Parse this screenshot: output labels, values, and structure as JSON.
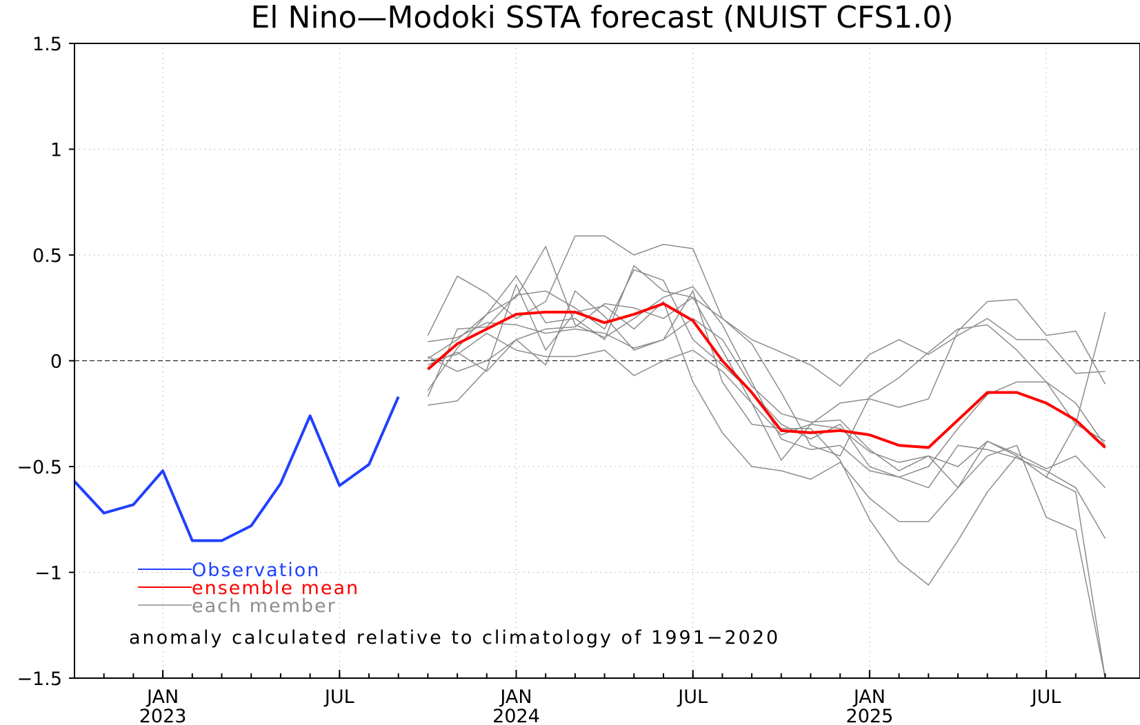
{
  "chart_data": {
    "type": "line",
    "title": "El Nino—Modoki SSTA forecast (NUIST CFS1.0)",
    "ylim": [
      -1.5,
      1.5
    ],
    "yticks": [
      {
        "value": 1.5,
        "label": "1.5"
      },
      {
        "value": 1,
        "label": "1"
      },
      {
        "value": 0.5,
        "label": "0.5"
      },
      {
        "value": 0,
        "label": "0"
      },
      {
        "value": -0.5,
        "label": "−0.5"
      },
      {
        "value": -1,
        "label": "−1"
      },
      {
        "value": -1.5,
        "label": "−1.5"
      }
    ],
    "x_range": [
      "2022-10",
      "2025-09"
    ],
    "xticks": [
      {
        "date": "2023-01",
        "month": "JAN",
        "year": "2023"
      },
      {
        "date": "2023-07",
        "month": "JUL",
        "year": ""
      },
      {
        "date": "2024-01",
        "month": "JAN",
        "year": "2024"
      },
      {
        "date": "2024-07",
        "month": "JUL",
        "year": ""
      },
      {
        "date": "2025-01",
        "month": "JAN",
        "year": "2025"
      },
      {
        "date": "2025-07",
        "month": "JUL",
        "year": ""
      }
    ],
    "grid": true,
    "legend_position": "bottom-left",
    "annotation": "anomaly calculated relative to climatology of 1991−2020",
    "colors": {
      "observation": "#2040ff",
      "ensemble_mean": "#ff0000",
      "member": "#8c8c8c"
    },
    "series": [
      {
        "name": "Observation",
        "role": "observation",
        "x": [
          "2022-10",
          "2022-11",
          "2022-12",
          "2023-01",
          "2023-02",
          "2023-03",
          "2023-04",
          "2023-05",
          "2023-06",
          "2023-07",
          "2023-08",
          "2023-09"
        ],
        "values": [
          -0.57,
          -0.72,
          -0.68,
          -0.52,
          -0.85,
          -0.85,
          -0.78,
          -0.58,
          -0.26,
          -0.59,
          -0.49,
          -0.17
        ]
      },
      {
        "name": "ensemble mean",
        "role": "mean",
        "x": [
          "2023-10",
          "2023-11",
          "2023-12",
          "2024-01",
          "2024-02",
          "2024-03",
          "2024-04",
          "2024-05",
          "2024-06",
          "2024-07",
          "2024-08",
          "2024-09",
          "2024-10",
          "2024-11",
          "2024-12",
          "2025-01",
          "2025-02",
          "2025-03",
          "2025-04",
          "2025-05",
          "2025-06",
          "2025-07",
          "2025-08",
          "2025-09"
        ],
        "values": [
          -0.04,
          0.08,
          0.15,
          0.22,
          0.23,
          0.23,
          0.18,
          0.22,
          0.27,
          0.19,
          0.0,
          -0.15,
          -0.33,
          -0.34,
          -0.33,
          -0.35,
          -0.4,
          -0.41,
          -0.28,
          -0.15,
          -0.15,
          -0.2,
          -0.28,
          -0.41
        ]
      },
      {
        "name": "each member",
        "role": "members",
        "x": [
          "2023-10",
          "2023-11",
          "2023-12",
          "2024-01",
          "2024-02",
          "2024-03",
          "2024-04",
          "2024-05",
          "2024-06",
          "2024-07",
          "2024-08",
          "2024-09",
          "2024-10",
          "2024-11",
          "2024-12",
          "2025-01",
          "2025-02",
          "2025-03",
          "2025-04",
          "2025-05",
          "2025-06",
          "2025-07",
          "2025-08",
          "2025-09"
        ],
        "members": [
          [
            0.12,
            0.4,
            0.32,
            0.2,
            0.28,
            0.59,
            0.59,
            0.5,
            0.55,
            0.53,
            0.2,
            0.1,
            0.04,
            -0.02,
            -0.12,
            0.03,
            0.1,
            0.03,
            0.12,
            0.2,
            0.1,
            0.1,
            -0.06,
            -0.05
          ],
          [
            -0.14,
            0.06,
            0.22,
            0.4,
            0.18,
            0.2,
            0.1,
            0.45,
            0.33,
            0.3,
            0.2,
            0.08,
            -0.15,
            -0.4,
            -0.45,
            -0.17,
            -0.08,
            0.04,
            0.15,
            0.17,
            0.05,
            -0.1,
            -0.2,
            -0.4
          ],
          [
            -0.17,
            0.15,
            0.16,
            0.31,
            0.33,
            0.25,
            0.15,
            0.43,
            0.38,
            0.1,
            -0.02,
            -0.15,
            -0.3,
            -0.37,
            -0.3,
            -0.5,
            -0.55,
            -0.5,
            -0.32,
            -0.16,
            -0.1,
            -0.1,
            -0.3,
            -0.38
          ],
          [
            0.01,
            0.1,
            0.22,
            0.3,
            0.54,
            0.17,
            0.11,
            0.2,
            0.3,
            0.35,
            0.17,
            -0.1,
            -0.37,
            -0.42,
            -0.4,
            -0.52,
            -0.55,
            -0.6,
            -0.4,
            -0.42,
            -0.46,
            -0.52,
            -0.6,
            -0.84
          ],
          [
            0.09,
            0.11,
            0.18,
            0.17,
            0.13,
            0.15,
            0.13,
            0.06,
            0.1,
            0.2,
            0.1,
            -0.12,
            -0.25,
            -0.29,
            -0.28,
            -0.42,
            -0.52,
            -0.45,
            -0.6,
            -0.38,
            -0.44,
            -0.51,
            -0.45,
            -0.6
          ],
          [
            -0.21,
            -0.19,
            -0.04,
            0.36,
            0.05,
            0.23,
            0.26,
            0.15,
            0.28,
            -0.1,
            -0.34,
            -0.5,
            -0.52,
            -0.56,
            -0.48,
            -0.65,
            -0.76,
            -0.76,
            -0.6,
            -0.45,
            -0.4,
            -0.74,
            -0.8,
            -1.5
          ],
          [
            -0.02,
            0.04,
            -0.05,
            0.1,
            0.15,
            0.16,
            0.27,
            0.25,
            0.2,
            0.3,
            0.05,
            -0.2,
            -0.47,
            -0.3,
            -0.2,
            -0.18,
            -0.22,
            -0.18,
            0.14,
            0.28,
            0.29,
            0.12,
            0.14,
            -0.11
          ],
          [
            0.02,
            -0.05,
            0.0,
            0.1,
            -0.02,
            0.33,
            0.21,
            0.05,
            0.1,
            0.33,
            -0.1,
            -0.3,
            -0.32,
            -0.32,
            -0.47,
            -0.75,
            -0.95,
            -1.06,
            -0.85,
            -0.62,
            -0.45,
            -0.55,
            -0.62,
            -1.5
          ],
          [
            0.0,
            0.03,
            0.13,
            0.05,
            0.02,
            0.02,
            0.05,
            -0.07,
            0.0,
            0.05,
            -0.05,
            -0.2,
            -0.35,
            -0.3,
            -0.32,
            -0.43,
            -0.48,
            -0.45,
            -0.5,
            -0.38,
            -0.45,
            -0.55,
            -0.3,
            0.23
          ]
        ]
      }
    ]
  }
}
